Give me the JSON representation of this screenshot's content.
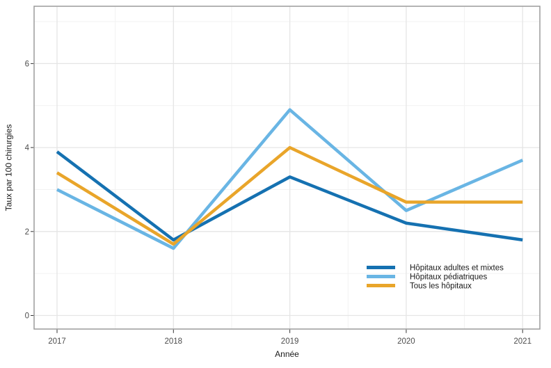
{
  "figure": {
    "background": "#ffffff"
  },
  "chart_data": {
    "type": "line",
    "x": [
      2017,
      2018,
      2019,
      2020,
      2021
    ],
    "series": [
      {
        "name": "Hôpitaux adultes et mixtes",
        "color": "#1571b1",
        "values": [
          3.9,
          1.8,
          3.3,
          2.2,
          1.8
        ]
      },
      {
        "name": "Hôpitaux pédiatriques",
        "color": "#69b5e4",
        "values": [
          3.0,
          1.6,
          4.9,
          2.5,
          3.7
        ]
      },
      {
        "name": "Tous les hôpitaux",
        "color": "#e9a52a",
        "values": [
          3.4,
          1.7,
          4.0,
          2.7,
          2.7
        ]
      }
    ],
    "title": "",
    "xlabel": "Année",
    "ylabel": "Taux par 100 chirurgies",
    "xticks": [
      "2017",
      "2018",
      "2019",
      "2020",
      "2021"
    ],
    "yticks": [
      "0",
      "2",
      "4",
      "6"
    ],
    "ytick_values": [
      0,
      2,
      4,
      6
    ],
    "yminor_values": [
      1,
      3,
      5,
      7
    ],
    "ylim": [
      -0.32,
      7.37
    ],
    "grid": "major-and-minor",
    "legend_position": "inside-bottom-right"
  },
  "style": {
    "panel_border_color": "#9b9b9b",
    "grid_major_color": "#e5e5e5",
    "grid_minor_color": "#f2f2f2",
    "tick_mark_color": "#333333",
    "tick_label_color": "#4d4d4d",
    "axis_title_color": "#1a1a1a",
    "legend_text_color": "#1a1a1a"
  }
}
